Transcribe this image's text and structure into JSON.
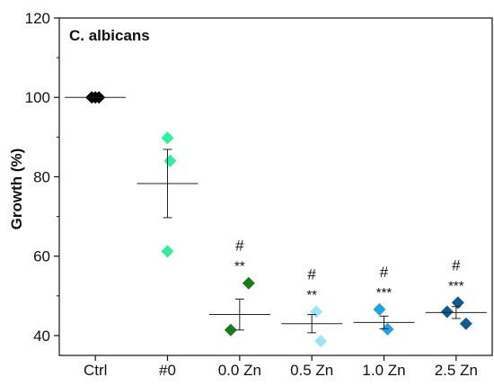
{
  "chart_data": {
    "type": "scatter",
    "title": "C. albicans",
    "xlabel": "",
    "ylabel": "Growth (%)",
    "ylim": [
      35,
      120
    ],
    "yticks": [
      40,
      60,
      80,
      100,
      120
    ],
    "categories": [
      "Ctrl",
      "#0",
      "0.0 Zn",
      "0.5 Zn",
      "1.0 Zn",
      "2.5 Zn"
    ],
    "groups": [
      {
        "category": "Ctrl",
        "color": "#000000",
        "points": [
          100,
          100,
          100
        ],
        "mean": 100.0,
        "err": 0,
        "star": "",
        "hash": ""
      },
      {
        "category": "#0",
        "color": "#2ef0a0",
        "points": [
          89.8,
          84.0,
          61.2
        ],
        "mean": 78.3,
        "err": 8.6,
        "star": "",
        "hash": ""
      },
      {
        "category": "0.0 Zn",
        "color": "#1b7a1b",
        "points": [
          53.2,
          41.4
        ],
        "mean": 45.3,
        "err": 3.9,
        "star": "**",
        "hash": "#"
      },
      {
        "category": "0.5 Zn",
        "color": "#9fe3f7",
        "points": [
          46.0,
          38.6
        ],
        "mean": 43.0,
        "err": 2.3,
        "star": "**",
        "hash": "#"
      },
      {
        "category": "1.0 Zn",
        "color": "#1aa3e6",
        "points": [
          46.6,
          41.6
        ],
        "mean": 43.3,
        "err": 1.6,
        "star": "***",
        "hash": "#"
      },
      {
        "category": "2.5 Zn",
        "color": "#0e5b8c",
        "points": [
          46.0,
          48.3,
          43.0
        ],
        "mean": 45.8,
        "err": 1.5,
        "star": "***",
        "hash": "#"
      }
    ]
  }
}
